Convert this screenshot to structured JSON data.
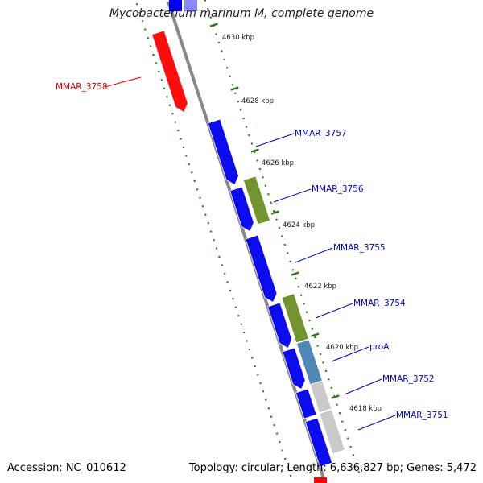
{
  "title": "Mycobacterium marinum M, complete genome",
  "footer": {
    "accession": "Accession: NC_010612",
    "summary": "Topology: circular; Length: 6,636,827 bp; Genes: 5,472"
  },
  "colors": {
    "backbone": "#888888",
    "tick": "#2a7a1a",
    "red_gene": "#ff0000",
    "blue_gene": "#0000ee",
    "olive_gene": "#6b8e23",
    "steel_gene": "#4682b4",
    "gray_gene": "#c8c8c8",
    "red_label": "#dd0000",
    "blue_label": "#0000cc"
  },
  "kbp_ticks": [
    "4630 kbp",
    "4628 kbp",
    "4626 kbp",
    "4624 kbp",
    "4622 kbp",
    "4620 kbp",
    "4618 kbp"
  ],
  "genes": [
    {
      "label": "MMAR_3758",
      "color": "red"
    },
    {
      "label": "MMAR_3757",
      "color": "blue"
    },
    {
      "label": "MMAR_3756",
      "color": "olive"
    },
    {
      "label": "MMAR_3755",
      "color": "blue"
    },
    {
      "label": "MMAR_3754",
      "color": "olive"
    },
    {
      "label": "proA",
      "color": "steel"
    },
    {
      "label": "MMAR_3752",
      "color": "gray"
    },
    {
      "label": "MMAR_3751",
      "color": "blue"
    }
  ]
}
